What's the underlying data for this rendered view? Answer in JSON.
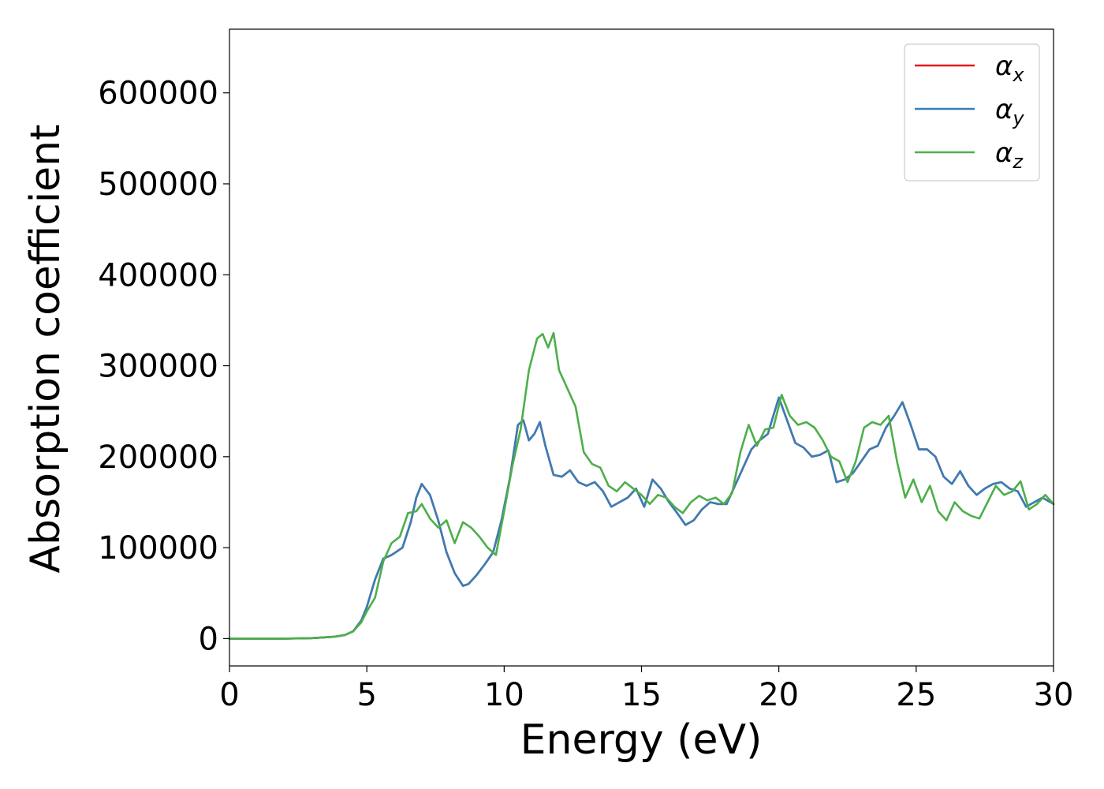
{
  "chart_data": {
    "type": "line",
    "xlabel": "Energy (eV)",
    "ylabel": "Absorption coefficient",
    "xlim": [
      0,
      30
    ],
    "ylim": [
      -30000,
      670000
    ],
    "xticks": [
      0,
      5,
      10,
      15,
      20,
      25,
      30
    ],
    "yticks": [
      0,
      100000,
      200000,
      300000,
      400000,
      500000,
      600000
    ],
    "grid": false,
    "legend_position": "top-right",
    "series": [
      {
        "name": "α_x",
        "symbol": "α",
        "subscript": "x",
        "color": "#e41a1c",
        "x": [
          0,
          2,
          3,
          3.8,
          4.2,
          4.5,
          4.8,
          5.0,
          5.3,
          5.6,
          5.9,
          6.3,
          6.6,
          6.8,
          7.0,
          7.3,
          7.6,
          7.9,
          8.2,
          8.5,
          8.7,
          9.0,
          9.3,
          9.6,
          9.9,
          10.2,
          10.5,
          10.7,
          10.9,
          11.1,
          11.3,
          11.5,
          11.8,
          12.1,
          12.4,
          12.7,
          13.0,
          13.3,
          13.6,
          13.9,
          14.2,
          14.5,
          14.8,
          15.1,
          15.4,
          15.7,
          16.0,
          16.3,
          16.6,
          16.9,
          17.2,
          17.5,
          17.8,
          18.1,
          18.4,
          18.7,
          19.0,
          19.3,
          19.6,
          20.0,
          20.3,
          20.6,
          20.9,
          21.2,
          21.5,
          21.8,
          22.1,
          22.4,
          22.7,
          23.0,
          23.3,
          23.6,
          23.9,
          24.2,
          24.5,
          24.8,
          25.1,
          25.4,
          25.7,
          26.0,
          26.3,
          26.6,
          26.9,
          27.2,
          27.5,
          27.8,
          28.1,
          28.4,
          28.7,
          29.0,
          29.3,
          29.6,
          30.0
        ],
        "y": [
          0,
          0,
          500,
          2000,
          4000,
          8000,
          20000,
          35000,
          65000,
          88000,
          92000,
          100000,
          128000,
          155000,
          170000,
          158000,
          130000,
          95000,
          72000,
          58000,
          60000,
          70000,
          82000,
          95000,
          130000,
          175000,
          235000,
          240000,
          218000,
          225000,
          238000,
          212000,
          180000,
          178000,
          185000,
          172000,
          168000,
          172000,
          162000,
          145000,
          150000,
          155000,
          165000,
          145000,
          175000,
          165000,
          150000,
          138000,
          125000,
          130000,
          142000,
          150000,
          148000,
          148000,
          168000,
          188000,
          208000,
          218000,
          225000,
          265000,
          240000,
          215000,
          210000,
          200000,
          202000,
          207000,
          172000,
          175000,
          182000,
          195000,
          208000,
          212000,
          232000,
          245000,
          260000,
          235000,
          208000,
          208000,
          200000,
          178000,
          170000,
          184000,
          168000,
          158000,
          165000,
          170000,
          172000,
          165000,
          162000,
          145000,
          150000,
          155000,
          148000
        ]
      },
      {
        "name": "α_y",
        "symbol": "α",
        "subscript": "y",
        "color": "#377eb8",
        "x": [
          0,
          2,
          3,
          3.8,
          4.2,
          4.5,
          4.8,
          5.0,
          5.3,
          5.6,
          5.9,
          6.3,
          6.6,
          6.8,
          7.0,
          7.3,
          7.6,
          7.9,
          8.2,
          8.5,
          8.7,
          9.0,
          9.3,
          9.6,
          9.9,
          10.2,
          10.5,
          10.7,
          10.9,
          11.1,
          11.3,
          11.5,
          11.8,
          12.1,
          12.4,
          12.7,
          13.0,
          13.3,
          13.6,
          13.9,
          14.2,
          14.5,
          14.8,
          15.1,
          15.4,
          15.7,
          16.0,
          16.3,
          16.6,
          16.9,
          17.2,
          17.5,
          17.8,
          18.1,
          18.4,
          18.7,
          19.0,
          19.3,
          19.6,
          20.0,
          20.3,
          20.6,
          20.9,
          21.2,
          21.5,
          21.8,
          22.1,
          22.4,
          22.7,
          23.0,
          23.3,
          23.6,
          23.9,
          24.2,
          24.5,
          24.8,
          25.1,
          25.4,
          25.7,
          26.0,
          26.3,
          26.6,
          26.9,
          27.2,
          27.5,
          27.8,
          28.1,
          28.4,
          28.7,
          29.0,
          29.3,
          29.6,
          30.0
        ],
        "y": [
          0,
          0,
          500,
          2000,
          4000,
          8000,
          20000,
          35000,
          65000,
          88000,
          92000,
          100000,
          128000,
          155000,
          170000,
          158000,
          130000,
          95000,
          72000,
          58000,
          60000,
          70000,
          82000,
          95000,
          130000,
          175000,
          235000,
          240000,
          218000,
          225000,
          238000,
          212000,
          180000,
          178000,
          185000,
          172000,
          168000,
          172000,
          162000,
          145000,
          150000,
          155000,
          165000,
          145000,
          175000,
          165000,
          150000,
          138000,
          125000,
          130000,
          142000,
          150000,
          148000,
          148000,
          168000,
          188000,
          208000,
          218000,
          225000,
          265000,
          240000,
          215000,
          210000,
          200000,
          202000,
          207000,
          172000,
          175000,
          182000,
          195000,
          208000,
          212000,
          232000,
          245000,
          260000,
          235000,
          208000,
          208000,
          200000,
          178000,
          170000,
          184000,
          168000,
          158000,
          165000,
          170000,
          172000,
          165000,
          162000,
          145000,
          150000,
          155000,
          148000
        ]
      },
      {
        "name": "α_z",
        "symbol": "α",
        "subscript": "z",
        "color": "#4daf4a",
        "x": [
          0,
          2,
          3,
          3.8,
          4.2,
          4.5,
          4.8,
          5.0,
          5.3,
          5.6,
          5.9,
          6.2,
          6.5,
          6.8,
          7.0,
          7.3,
          7.6,
          7.9,
          8.2,
          8.5,
          8.8,
          9.1,
          9.4,
          9.7,
          10.0,
          10.3,
          10.6,
          10.9,
          11.2,
          11.4,
          11.6,
          11.8,
          12.0,
          12.3,
          12.6,
          12.9,
          13.2,
          13.5,
          13.8,
          14.1,
          14.4,
          14.7,
          15.0,
          15.3,
          15.6,
          15.9,
          16.2,
          16.5,
          16.8,
          17.1,
          17.4,
          17.7,
          18.0,
          18.3,
          18.6,
          18.9,
          19.2,
          19.5,
          19.8,
          20.1,
          20.4,
          20.7,
          21.0,
          21.3,
          21.6,
          21.9,
          22.2,
          22.5,
          22.8,
          23.1,
          23.4,
          23.7,
          24.0,
          24.3,
          24.6,
          24.9,
          25.2,
          25.5,
          25.8,
          26.1,
          26.4,
          26.7,
          27.0,
          27.3,
          27.6,
          27.9,
          28.2,
          28.5,
          28.8,
          29.1,
          29.4,
          29.7,
          30.0
        ],
        "y": [
          0,
          0,
          500,
          2000,
          4000,
          8000,
          18000,
          30000,
          45000,
          85000,
          105000,
          112000,
          138000,
          140000,
          148000,
          132000,
          122000,
          130000,
          105000,
          128000,
          122000,
          112000,
          100000,
          92000,
          140000,
          190000,
          230000,
          295000,
          330000,
          335000,
          320000,
          336000,
          295000,
          275000,
          255000,
          205000,
          192000,
          188000,
          168000,
          162000,
          172000,
          165000,
          158000,
          148000,
          158000,
          155000,
          145000,
          138000,
          150000,
          157000,
          152000,
          155000,
          148000,
          160000,
          205000,
          235000,
          212000,
          230000,
          232000,
          268000,
          245000,
          235000,
          238000,
          232000,
          218000,
          200000,
          195000,
          172000,
          195000,
          232000,
          238000,
          235000,
          245000,
          195000,
          155000,
          175000,
          150000,
          168000,
          140000,
          130000,
          150000,
          140000,
          135000,
          132000,
          150000,
          168000,
          158000,
          162000,
          173000,
          142000,
          148000,
          158000,
          148000
        ]
      }
    ]
  }
}
